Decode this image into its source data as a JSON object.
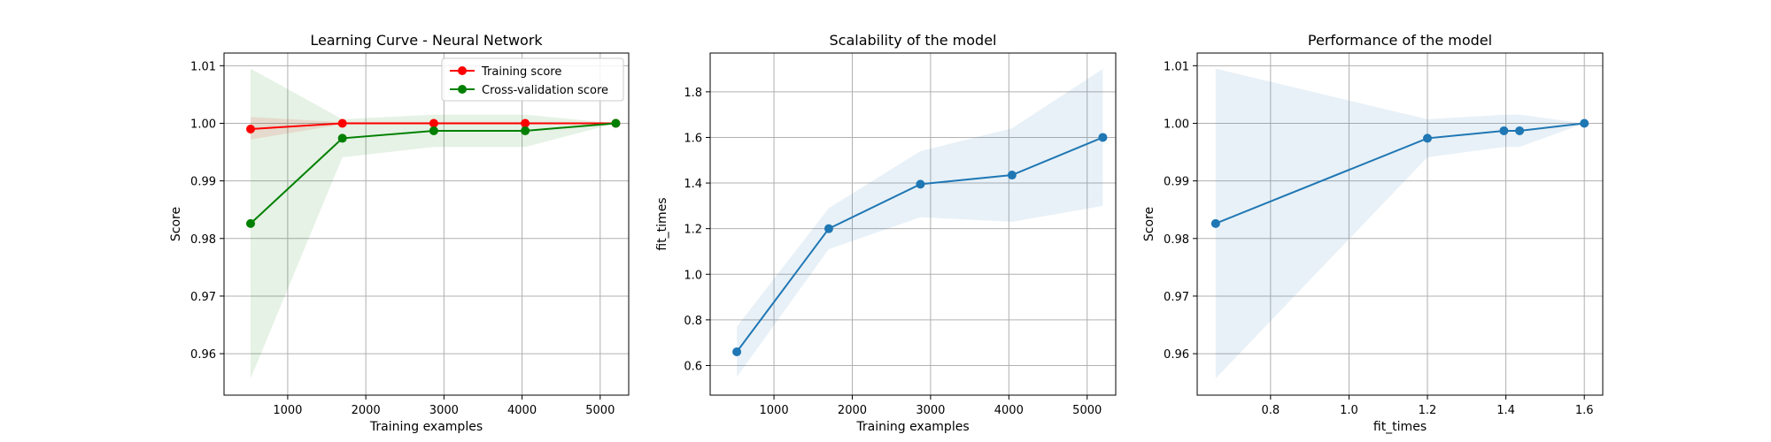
{
  "chart_data": [
    {
      "type": "line",
      "title": "Learning Curve - Neural Network",
      "xlabel": "Training examples",
      "ylabel": "Score",
      "xlim": [
        185,
        5365
      ],
      "ylim": [
        0.9528,
        1.0122
      ],
      "xticks": [
        1000,
        2000,
        3000,
        4000,
        5000
      ],
      "yticks": [
        0.96,
        0.97,
        0.98,
        0.99,
        1.0,
        1.01
      ],
      "ytick_format": "0.00",
      "grid": true,
      "legend": "top-right",
      "x": [
        525,
        1700,
        2870,
        4040,
        5200
      ],
      "series": [
        {
          "name": "Training score",
          "color": "#ff0000",
          "values": [
            0.999,
            1.0,
            1.0,
            1.0,
            1.0
          ],
          "band_lower": [
            0.9972,
            0.9998,
            0.9998,
            0.9998,
            1.0
          ],
          "band_upper": [
            1.0011,
            1.0002,
            1.0002,
            1.0002,
            1.0
          ],
          "band_color": "#ff0000"
        },
        {
          "name": "Cross-validation score",
          "color": "#008000",
          "values": [
            0.9826,
            0.9974,
            0.9987,
            0.9987,
            1.0
          ],
          "band_lower": [
            0.9557,
            0.9941,
            0.9959,
            0.9959,
            1.0
          ],
          "band_upper": [
            1.0095,
            1.0007,
            1.0015,
            1.0015,
            1.0
          ],
          "band_color": "#008000"
        }
      ]
    },
    {
      "type": "line",
      "title": "Scalability of the model",
      "xlabel": "Training examples",
      "ylabel": "fit_times",
      "xlim": [
        185,
        5365
      ],
      "ylim": [
        0.47,
        1.97
      ],
      "xticks": [
        1000,
        2000,
        3000,
        4000,
        5000
      ],
      "yticks": [
        0.6,
        0.8,
        1.0,
        1.2,
        1.4,
        1.6,
        1.8
      ],
      "ytick_format": "0.0",
      "grid": true,
      "x": [
        525,
        1700,
        2870,
        4040,
        5200
      ],
      "series": [
        {
          "color": "#1f77b4",
          "values": [
            0.66,
            1.2,
            1.395,
            1.435,
            1.6
          ],
          "band_lower": [
            0.55,
            1.11,
            1.25,
            1.23,
            1.3
          ],
          "band_upper": [
            0.77,
            1.29,
            1.54,
            1.64,
            1.9
          ],
          "band_color": "#1f77b4"
        }
      ]
    },
    {
      "type": "line",
      "title": "Performance of the model",
      "xlabel": "fit_times",
      "ylabel": "Score",
      "xlim": [
        0.613,
        1.647
      ],
      "ylim": [
        0.9528,
        1.0122
      ],
      "xticks": [
        0.8,
        1.0,
        1.2,
        1.4,
        1.6
      ],
      "yticks": [
        0.96,
        0.97,
        0.98,
        0.99,
        1.0,
        1.01
      ],
      "xtick_format": "0.0",
      "ytick_format": "0.00",
      "grid": true,
      "x": [
        0.66,
        1.2,
        1.395,
        1.435,
        1.6
      ],
      "series": [
        {
          "color": "#1f77b4",
          "values": [
            0.9826,
            0.9974,
            0.9987,
            0.9987,
            1.0
          ],
          "band_lower": [
            0.9557,
            0.9941,
            0.9959,
            0.9959,
            1.0
          ],
          "band_upper": [
            1.0095,
            1.0007,
            1.0015,
            1.0015,
            1.0
          ],
          "band_color": "#1f77b4"
        }
      ]
    }
  ]
}
